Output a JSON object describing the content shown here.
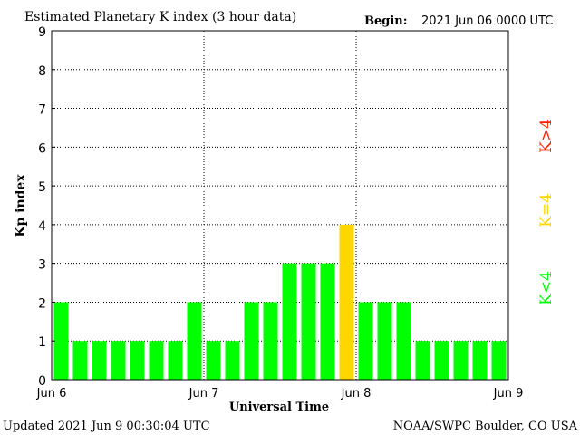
{
  "chart_data": {
    "type": "bar",
    "title": "Estimated Planetary K index (3 hour data)",
    "begin_label": "Begin:",
    "begin_value": "2021 Jun 06 0000 UTC",
    "xlabel": "Universal Time",
    "ylabel": "Kp index",
    "ylim": [
      0,
      9
    ],
    "yticks": [
      "0",
      "1",
      "2",
      "3",
      "4",
      "5",
      "6",
      "7",
      "8",
      "9"
    ],
    "xticks": [
      "Jun 6",
      "Jun 7",
      "Jun 8",
      "Jun 9"
    ],
    "grid": true,
    "values": [
      2,
      1,
      1,
      1,
      1,
      1,
      1,
      2,
      1,
      1,
      2,
      2,
      3,
      3,
      3,
      4,
      2,
      2,
      2,
      1,
      1,
      1,
      1,
      1
    ],
    "colors": {
      "below": "#00ff00",
      "equal": "#ffd700",
      "above": "#ff2000"
    },
    "legend": [
      {
        "label": "K>4",
        "color": "#ff2000"
      },
      {
        "label": "K=4",
        "color": "#ffd700"
      },
      {
        "label": "K<4",
        "color": "#00ff00"
      }
    ]
  },
  "footer": {
    "updated": "Updated 2021 Jun  9 00:30:04 UTC",
    "source": "NOAA/SWPC Boulder, CO USA"
  }
}
